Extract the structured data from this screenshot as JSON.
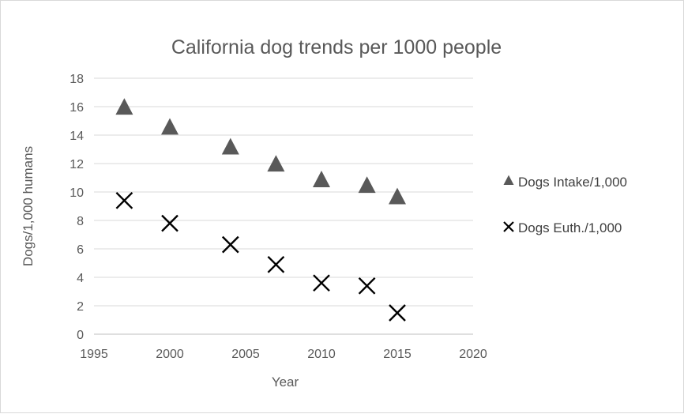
{
  "chart_data": {
    "type": "scatter",
    "title": "California dog trends per 1000 people",
    "xlabel": "Year",
    "ylabel": "Dogs/1,000 humans",
    "xlim": [
      1995,
      2020
    ],
    "ylim": [
      0,
      18
    ],
    "x_ticks": [
      "1995",
      "2000",
      "2005",
      "2010",
      "2015",
      "2020"
    ],
    "y_ticks": [
      "0",
      "2",
      "4",
      "6",
      "8",
      "10",
      "12",
      "14",
      "16",
      "18"
    ],
    "grid": "horizontal",
    "legend_position": "right",
    "series": [
      {
        "name": "Dogs Intake/1,000",
        "marker": "triangle",
        "color": "#595959",
        "x": [
          1997,
          2000,
          2004,
          2007,
          2010,
          2013,
          2015
        ],
        "y": [
          15.9,
          14.5,
          13.1,
          11.9,
          10.8,
          10.4,
          9.6
        ]
      },
      {
        "name": "Dogs Euth./1,000",
        "marker": "x",
        "color": "#000000",
        "x": [
          1997,
          2000,
          2004,
          2007,
          2010,
          2013,
          2015
        ],
        "y": [
          9.4,
          7.8,
          6.3,
          4.9,
          3.6,
          3.4,
          1.5
        ]
      }
    ]
  }
}
